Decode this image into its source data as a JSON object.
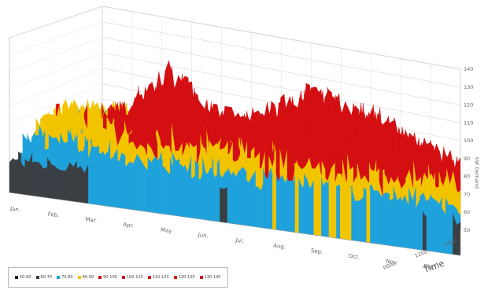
{
  "chart_data": {
    "type": "area",
    "zlabel": "kW Demand",
    "time_label": "Time",
    "z_ticks": [
      "50",
      "60",
      "70",
      "80",
      "90",
      "100",
      "110",
      "120",
      "130",
      "140"
    ],
    "z_range": [
      50,
      140
    ],
    "month_labels": [
      "Jan.",
      "Feb.",
      "Mar.",
      "Apr.",
      "May",
      "Jun.",
      "Jul.",
      "Aug.",
      "Sep.",
      "Oct.",
      "Nov.",
      "Dec."
    ],
    "time_ticks": [
      "0000",
      "1200",
      "2300"
    ],
    "grid": true,
    "legend": {
      "position": "bottom-left"
    },
    "bands": [
      {
        "label": "50-60",
        "min": 50,
        "max": 60,
        "color": "#1a1a1a"
      },
      {
        "label": "60-70",
        "min": 60,
        "max": 70,
        "color": "#3a3f44"
      },
      {
        "label": "70-80",
        "min": 70,
        "max": 80,
        "color": "#1fa2dc"
      },
      {
        "label": "80-90",
        "min": 80,
        "max": 90,
        "color": "#f2c400"
      },
      {
        "label": "90-100",
        "min": 90,
        "max": 100,
        "color": "#d40f12"
      },
      {
        "label": "100-110",
        "min": 100,
        "max": 110,
        "color": "#d40f12"
      },
      {
        "label": "110-120",
        "min": 110,
        "max": 120,
        "color": "#d40f12"
      },
      {
        "label": "120-130",
        "min": 120,
        "max": 130,
        "color": "#d40f12"
      },
      {
        "label": "130-140",
        "min": 130,
        "max": 140,
        "color": "#d40f12"
      }
    ],
    "seasonal_peak": [
      {
        "month": 1,
        "kw": 95
      },
      {
        "month": 2,
        "kw": 96
      },
      {
        "month": 3,
        "kw": 104
      },
      {
        "month": 4,
        "kw": 130
      },
      {
        "month": 5,
        "kw": 112
      },
      {
        "month": 6,
        "kw": 106
      },
      {
        "month": 7,
        "kw": 120
      },
      {
        "month": 8,
        "kw": 134
      },
      {
        "month": 9,
        "kw": 132
      },
      {
        "month": 10,
        "kw": 123
      },
      {
        "month": 11,
        "kw": 114
      },
      {
        "month": 12,
        "kw": 104
      }
    ]
  }
}
